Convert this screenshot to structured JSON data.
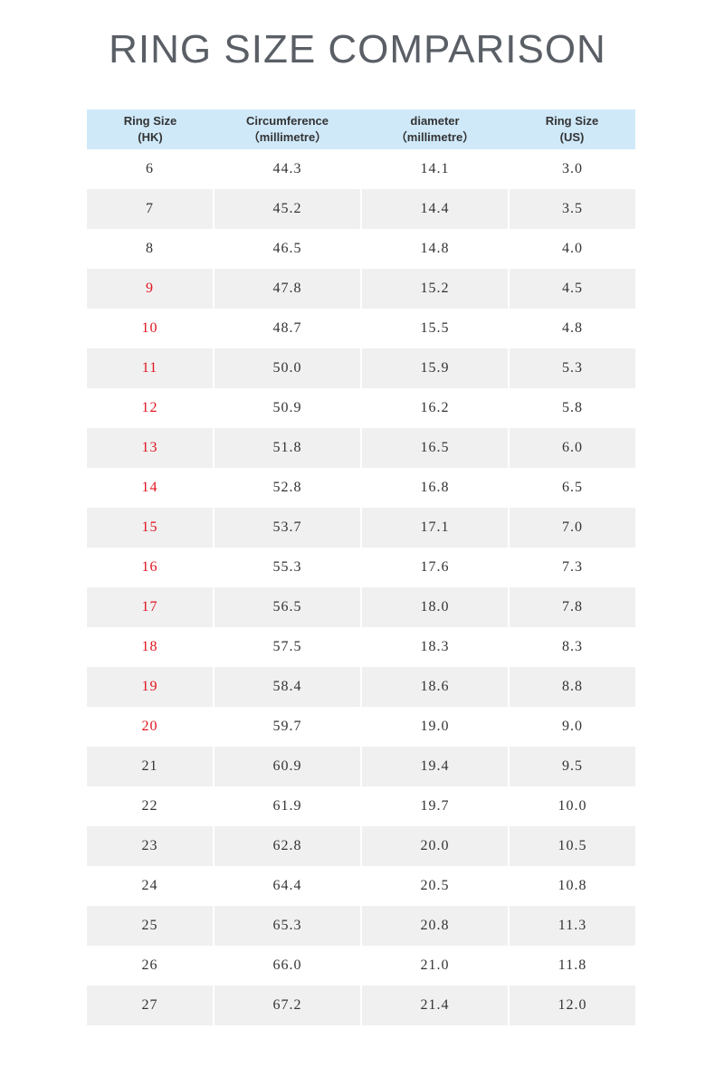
{
  "header": {
    "title": "RING SIZE COMPARISON"
  },
  "table": {
    "columns": [
      [
        "Ring Size",
        "(HK)"
      ],
      [
        "Circumference",
        "（millimetre）"
      ],
      [
        "diameter",
        "（millimetre）"
      ],
      [
        "Ring Size",
        "(US)"
      ]
    ],
    "rows": [
      [
        "6",
        "44.3",
        "14.1",
        "3.0"
      ],
      [
        "7",
        "45.2",
        "14.4",
        "3.5"
      ],
      [
        "8",
        "46.5",
        "14.8",
        "4.0"
      ],
      [
        "9",
        "47.8",
        "15.2",
        "4.5"
      ],
      [
        "10",
        "48.7",
        "15.5",
        "4.8"
      ],
      [
        "11",
        "50.0",
        "15.9",
        "5.3"
      ],
      [
        "12",
        "50.9",
        "16.2",
        "5.8"
      ],
      [
        "13",
        "51.8",
        "16.5",
        "6.0"
      ],
      [
        "14",
        "52.8",
        "16.8",
        "6.5"
      ],
      [
        "15",
        "53.7",
        "17.1",
        "7.0"
      ],
      [
        "16",
        "55.3",
        "17.6",
        "7.3"
      ],
      [
        "17",
        "56.5",
        "18.0",
        "7.8"
      ],
      [
        "18",
        "57.5",
        "18.3",
        "8.3"
      ],
      [
        "19",
        "58.4",
        "18.6",
        "8.8"
      ],
      [
        "20",
        "59.7",
        "19.0",
        "9.0"
      ],
      [
        "21",
        "60.9",
        "19.4",
        "9.5"
      ],
      [
        "22",
        "61.9",
        "19.7",
        "10.0"
      ],
      [
        "23",
        "62.8",
        "20.0",
        "10.5"
      ],
      [
        "24",
        "64.4",
        "20.5",
        "10.8"
      ],
      [
        "25",
        "65.3",
        "20.8",
        "11.3"
      ],
      [
        "26",
        "66.0",
        "21.0",
        "11.8"
      ],
      [
        "27",
        "67.2",
        "21.4",
        "12.0"
      ]
    ]
  }
}
